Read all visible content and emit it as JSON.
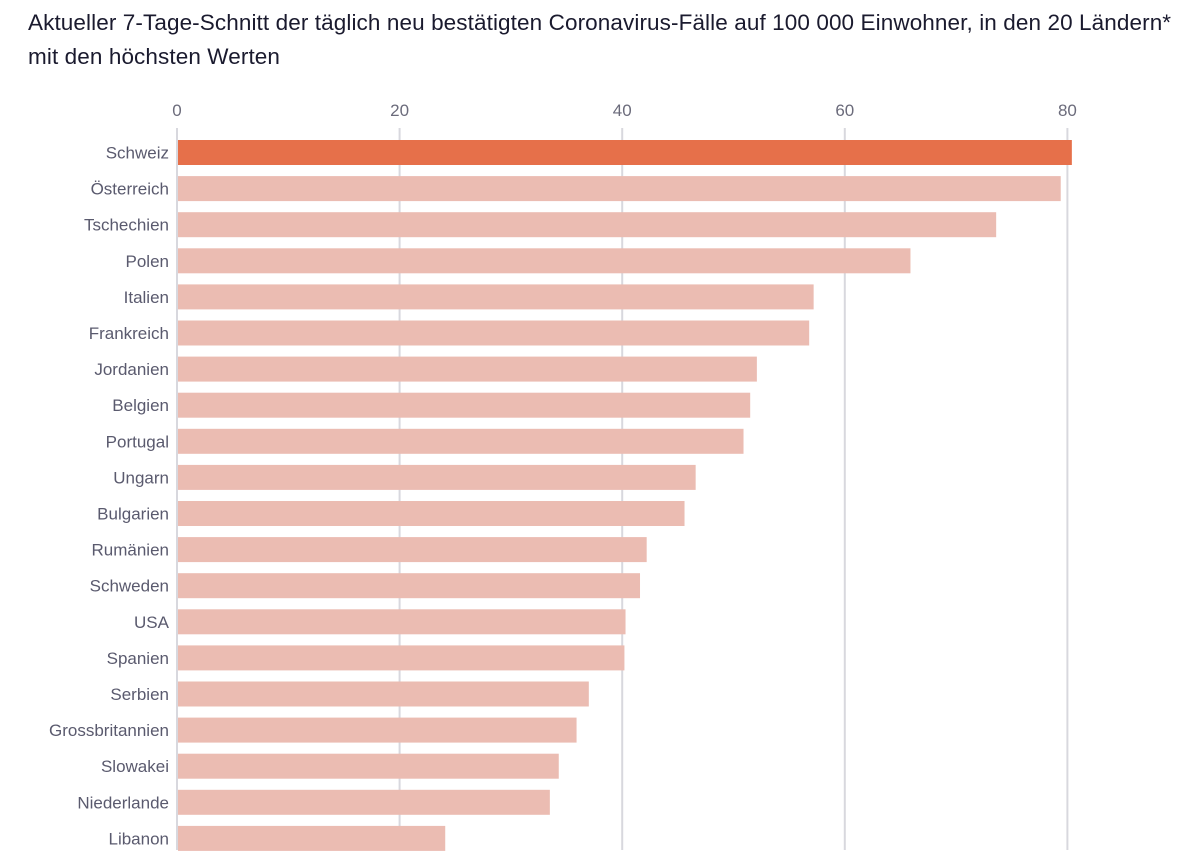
{
  "chart_data": {
    "type": "bar",
    "orientation": "horizontal",
    "title": "Aktueller 7-Tage-Schnitt der täglich neu bestätigten Coronavirus-Fälle auf 100 000 Einwohner, in den 20 Ländern* mit den höchsten Werten",
    "xlabel": "",
    "ylabel": "",
    "xlim": [
      0,
      88
    ],
    "xticks": [
      0,
      20,
      40,
      60,
      80
    ],
    "xtick_labels": [
      "0",
      "20",
      "40",
      "60",
      "80"
    ],
    "grid": true,
    "categories": [
      "Schweiz",
      "Österreich",
      "Tschechien",
      "Polen",
      "Italien",
      "Frankreich",
      "Jordanien",
      "Belgien",
      "Portugal",
      "Ungarn",
      "Bulgarien",
      "Rumänien",
      "Schweden",
      "USA",
      "Spanien",
      "Serbien",
      "Grossbritannien",
      "Slowakei",
      "Niederlande",
      "Libanon"
    ],
    "values": [
      80.4,
      79.4,
      73.6,
      65.9,
      57.2,
      56.8,
      52.1,
      51.5,
      50.9,
      46.6,
      45.6,
      42.2,
      41.6,
      40.3,
      40.2,
      37.0,
      35.9,
      34.3,
      33.5,
      24.1
    ],
    "highlight": "Schweiz",
    "colors": {
      "highlight": "#e6704a",
      "default": "#ebbcb2",
      "grid": "#d8d8de",
      "title": "#1a1a2e",
      "labels": "#5a5a6e"
    }
  }
}
